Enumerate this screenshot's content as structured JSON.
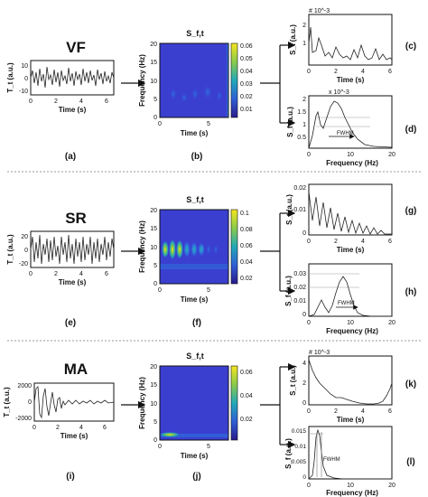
{
  "rows": [
    {
      "title": "VF",
      "signal": {
        "ylabel": "T_t (a.u.)",
        "xlabel": "Time (s)",
        "xticks": [
          "0",
          "2",
          "4",
          "6"
        ],
        "yticks": [
          "10",
          "0",
          "-10"
        ],
        "panel_label": "(a)"
      },
      "spectrogram": {
        "title": "S_f,t",
        "ylabel": "Frequency (Hz)",
        "xlabel": "Time (s)",
        "yticks": [
          "20",
          "15",
          "10",
          "5",
          "0"
        ],
        "xticks": [
          "0",
          "5"
        ],
        "colorbar_ticks": [
          "0.06",
          "0.05",
          "0.04",
          "0.03",
          "0.02",
          "0.01"
        ],
        "panel_label": "(b)"
      },
      "time_plot": {
        "ylabel": "S_t (a.u.)",
        "xlabel": "Time (s)",
        "scale": "# 10^-3",
        "yticks": [
          "2",
          "1"
        ],
        "xticks": [
          "0",
          "2",
          "4",
          "6"
        ],
        "panel_label": "(c)"
      },
      "freq_plot": {
        "ylabel": "S_f (a.u.)",
        "xlabel": "Frequency (Hz)",
        "scale": "x 10^-3",
        "yticks": [
          "2",
          "1.5",
          "1",
          "0.5"
        ],
        "xticks": [
          "0",
          "10",
          "20"
        ],
        "fwhm": "FWHM",
        "panel_label": "(d)"
      }
    },
    {
      "title": "SR",
      "signal": {
        "ylabel": "T_t (a.u.)",
        "xlabel": "Time (s)",
        "xticks": [
          "0",
          "2",
          "4",
          "6"
        ],
        "yticks": [
          "20",
          "0",
          "-20"
        ],
        "panel_label": "(e)"
      },
      "spectrogram": {
        "title": "S_f,t",
        "ylabel": "Frequency (Hz)",
        "xlabel": "Time (s)",
        "yticks": [
          "20",
          "15",
          "10",
          "5",
          "0"
        ],
        "xticks": [
          "0",
          "5"
        ],
        "colorbar_ticks": [
          "0.1",
          "0.08",
          "0.06",
          "0.04",
          "0.02"
        ],
        "panel_label": "(f)"
      },
      "time_plot": {
        "ylabel": "S_t (a.u.)",
        "xlabel": "Time (s)",
        "scale": "",
        "yticks": [
          "0.02",
          "0.01",
          "0"
        ],
        "xticks": [
          "0",
          "2",
          "4",
          "6"
        ],
        "panel_label": "(g)"
      },
      "freq_plot": {
        "ylabel": "S_f (a.u.)",
        "xlabel": "Frequency (Hz)",
        "scale": "",
        "yticks": [
          "0.03",
          "0.02",
          "0.01",
          "0"
        ],
        "xticks": [
          "0",
          "10",
          "20"
        ],
        "fwhm": "FWHM",
        "panel_label": "(h)"
      }
    },
    {
      "title": "MA",
      "signal": {
        "ylabel": "T_t (a.u.)",
        "xlabel": "Time (s)",
        "xticks": [
          "0",
          "2",
          "4",
          "6"
        ],
        "yticks": [
          "2000",
          "0",
          "-2000"
        ],
        "panel_label": "(i)"
      },
      "spectrogram": {
        "title": "S_f,t",
        "ylabel": "Frequency (Hz)",
        "xlabel": "Time (s)",
        "yticks": [
          "20",
          "15",
          "10",
          "5",
          "0"
        ],
        "xticks": [
          "0",
          "5"
        ],
        "colorbar_ticks": [
          "0.06",
          "0.04",
          "0.02"
        ],
        "panel_label": "(j)"
      },
      "time_plot": {
        "ylabel": "S_t (a.u.)",
        "xlabel": "Time (s)",
        "scale": "# 10^-3",
        "yticks": [
          "4",
          "2",
          "0"
        ],
        "xticks": [
          "0",
          "2",
          "4",
          "6"
        ],
        "panel_label": "(k)"
      },
      "freq_plot": {
        "ylabel": "S_f (a.u.)",
        "xlabel": "Frequency (Hz)",
        "scale": "",
        "yticks": [
          "0.015",
          "0.01",
          "0.005",
          "0"
        ],
        "xticks": [
          "0",
          "10",
          "20"
        ],
        "fwhm": "FWHM",
        "panel_label": "(l)"
      }
    }
  ]
}
